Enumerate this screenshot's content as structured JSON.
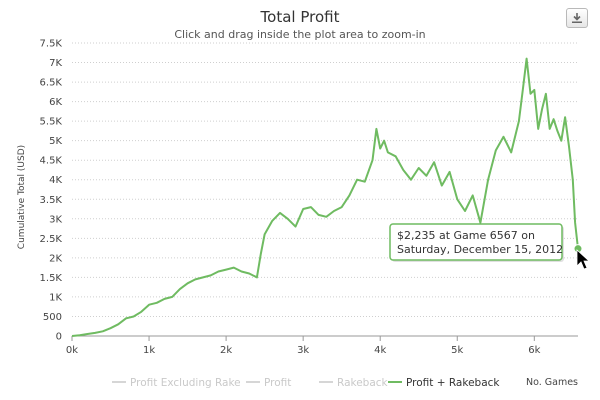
{
  "chart_data": {
    "type": "line",
    "title": "Total Profit",
    "subtitle": "Click and drag inside the plot area to zoom-in",
    "ylabel": "Cumulative Total (USD)",
    "xlabel": "No. Games",
    "ylim": [
      0,
      7500
    ],
    "xlim": [
      0,
      6567
    ],
    "grid": true,
    "y_ticks": [
      0,
      500,
      1000,
      1500,
      2000,
      2500,
      3000,
      3500,
      4000,
      4500,
      5000,
      5500,
      6000,
      6500,
      7000,
      7500
    ],
    "y_tick_labels": [
      "0",
      "500",
      "1K",
      "1.5K",
      "2K",
      "2.5K",
      "3K",
      "3.5K",
      "4K",
      "4.5K",
      "5K",
      "5.5K",
      "6K",
      "6.5K",
      "7K",
      "7.5K"
    ],
    "x_ticks": [
      0,
      1000,
      2000,
      3000,
      4000,
      5000,
      6000
    ],
    "x_tick_labels": [
      "0k",
      "1k",
      "2k",
      "3k",
      "4k",
      "5k",
      "6k"
    ],
    "legend": {
      "position": "bottom",
      "items": [
        {
          "name": "Profit Excluding Rake",
          "active": false
        },
        {
          "name": "Profit",
          "active": false
        },
        {
          "name": "Rakeback",
          "active": false
        },
        {
          "name": "Profit + Rakeback",
          "active": true,
          "color": "#6fbb61"
        }
      ]
    },
    "series": [
      {
        "name": "Profit + Rakeback",
        "color": "#6fbb61",
        "x": [
          0,
          100,
          200,
          300,
          400,
          500,
          600,
          700,
          800,
          900,
          1000,
          1100,
          1200,
          1300,
          1400,
          1500,
          1600,
          1700,
          1800,
          1900,
          2000,
          2100,
          2200,
          2300,
          2400,
          2450,
          2500,
          2600,
          2700,
          2800,
          2900,
          3000,
          3100,
          3200,
          3300,
          3400,
          3500,
          3600,
          3700,
          3800,
          3900,
          3950,
          4000,
          4050,
          4100,
          4200,
          4300,
          4400,
          4500,
          4600,
          4700,
          4800,
          4900,
          5000,
          5100,
          5200,
          5300,
          5400,
          5500,
          5600,
          5700,
          5800,
          5850,
          5900,
          5950,
          6000,
          6050,
          6100,
          6150,
          6200,
          6250,
          6300,
          6350,
          6400,
          6450,
          6500,
          6530,
          6567
        ],
        "y": [
          0,
          20,
          50,
          80,
          120,
          200,
          300,
          450,
          500,
          620,
          800,
          850,
          950,
          1000,
          1200,
          1350,
          1450,
          1500,
          1550,
          1650,
          1700,
          1750,
          1650,
          1600,
          1500,
          2100,
          2600,
          2950,
          3150,
          3000,
          2800,
          3250,
          3300,
          3100,
          3050,
          3200,
          3300,
          3600,
          4000,
          3950,
          4500,
          5300,
          4800,
          5000,
          4700,
          4600,
          4250,
          4000,
          4300,
          4100,
          4450,
          3850,
          4200,
          3500,
          3200,
          3600,
          2900,
          4000,
          4750,
          5100,
          4700,
          5500,
          6300,
          7100,
          6200,
          6300,
          5300,
          5800,
          6200,
          5300,
          5550,
          5250,
          5000,
          5600,
          4850,
          4000,
          2900,
          2235
        ]
      }
    ],
    "tooltip": {
      "line1": "$2,235 at Game 6567 on",
      "line2": "Saturday, December 15, 2012",
      "game": 6567,
      "value": 2235
    }
  },
  "toolbar": {
    "download_icon": "download-icon"
  }
}
